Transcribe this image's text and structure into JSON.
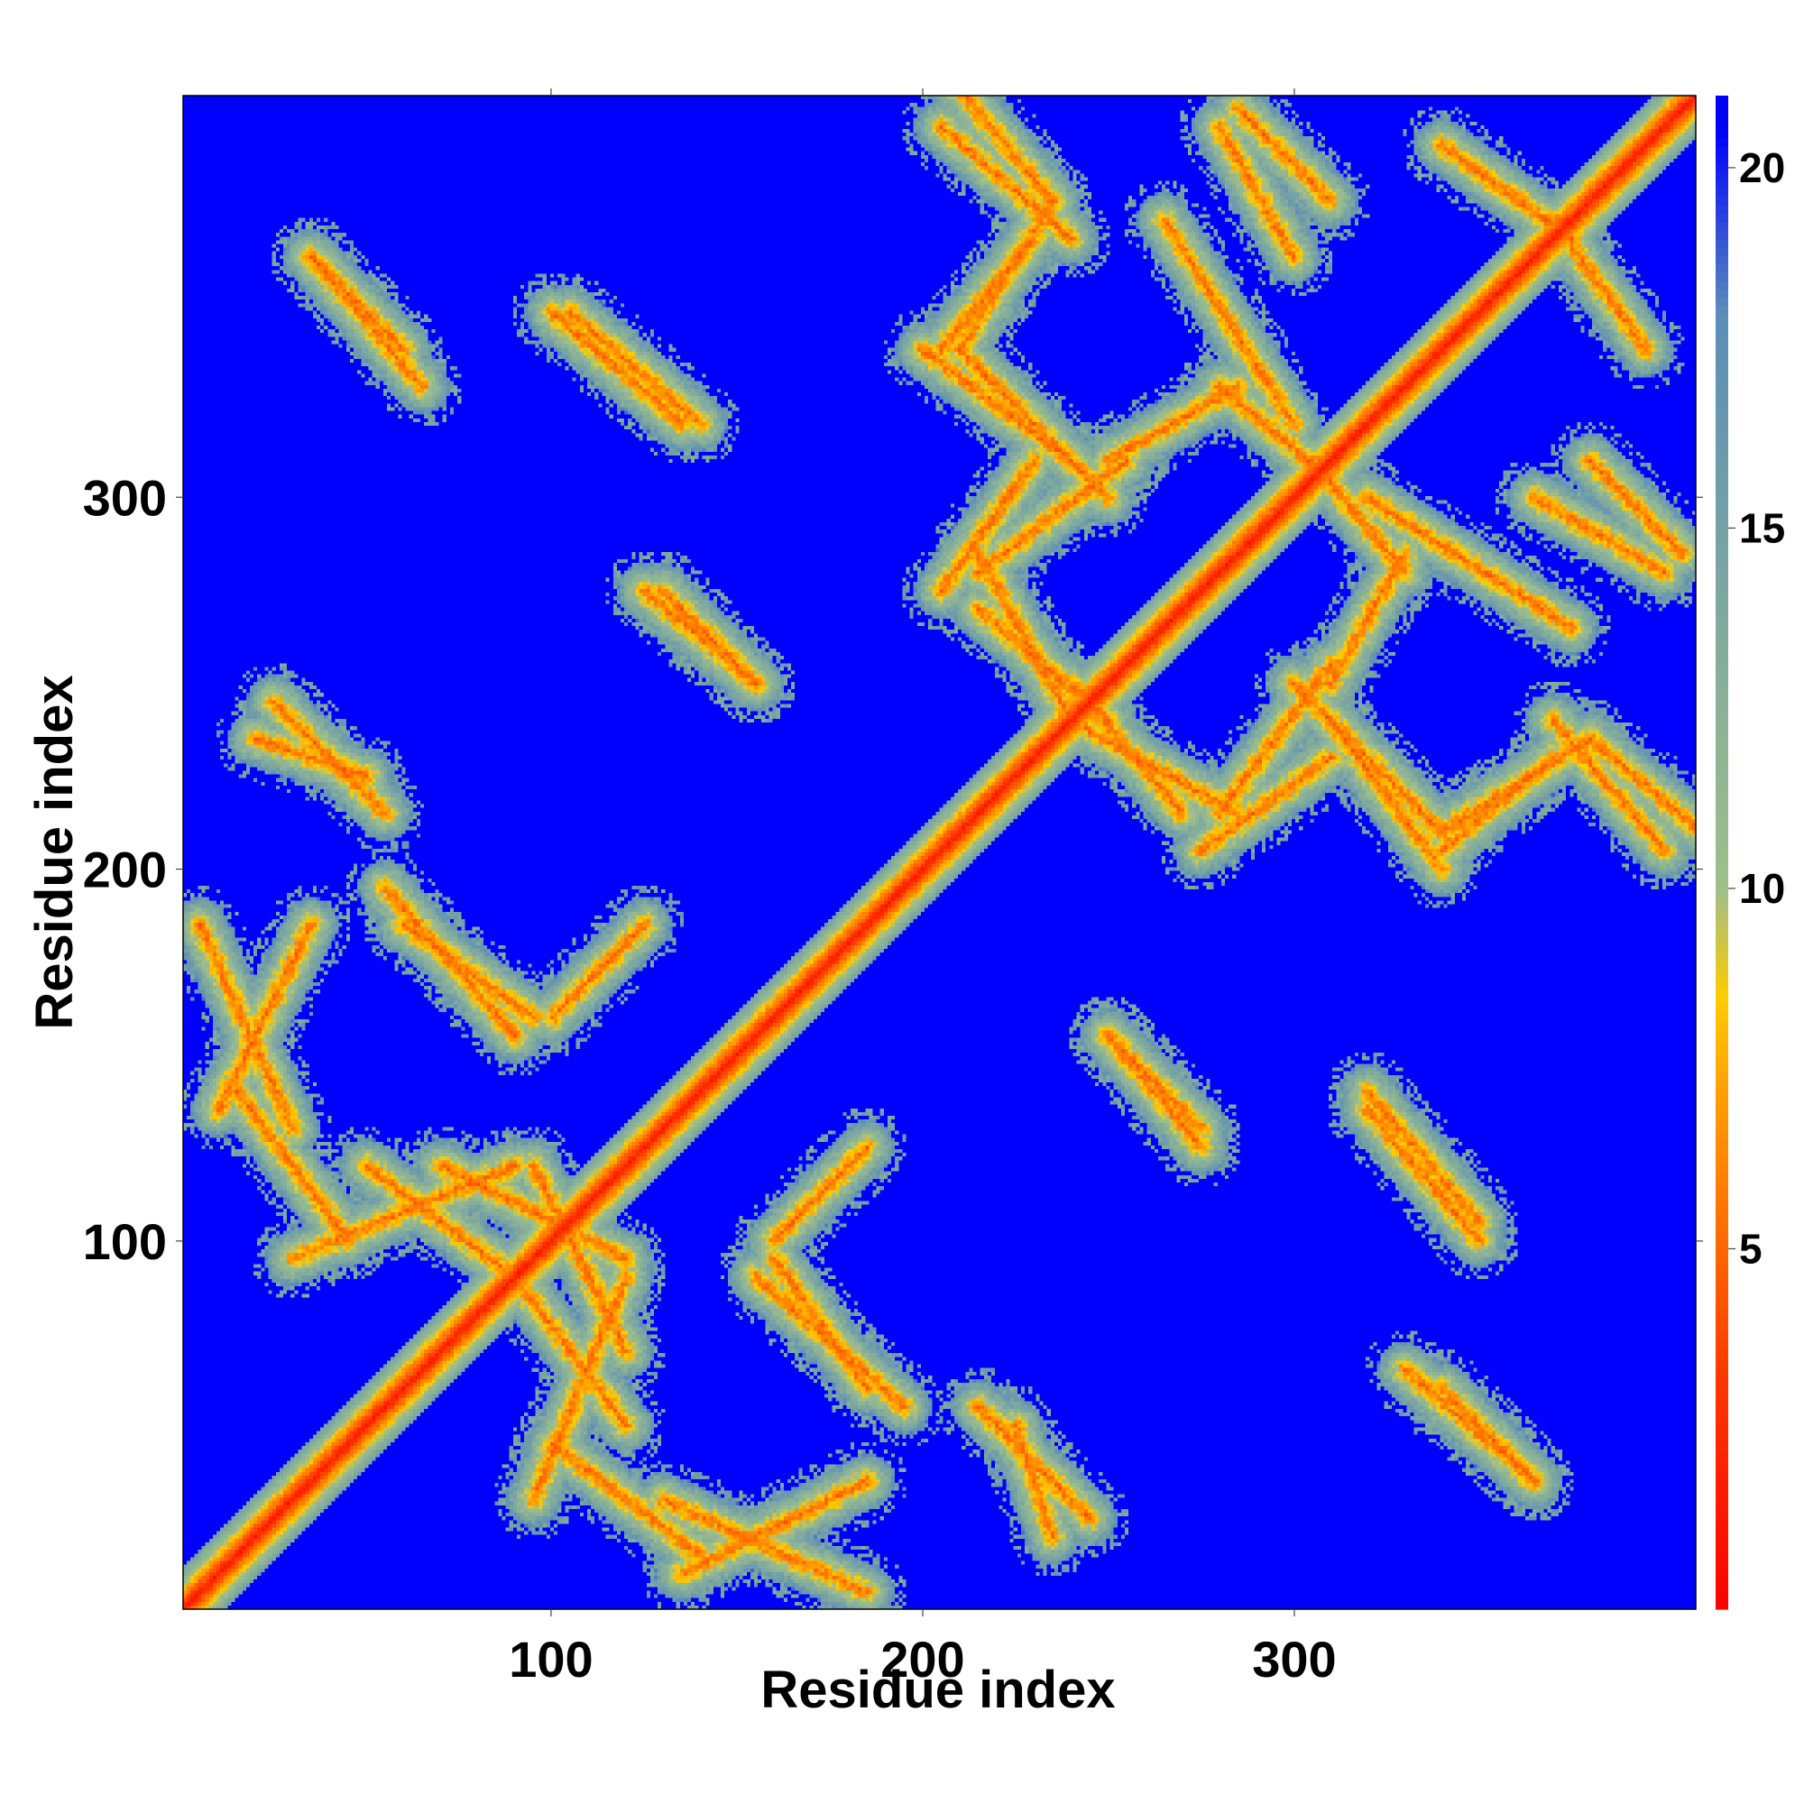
{
  "chart_data": {
    "type": "heatmap",
    "title": "",
    "xlabel": "Residue index",
    "ylabel": "Residue index",
    "xlim": [
      1,
      408
    ],
    "ylim": [
      1,
      408
    ],
    "xticks": [
      100,
      200,
      300
    ],
    "yticks": [
      100,
      200,
      300
    ],
    "n_residues": 408,
    "background_value": 21,
    "colorbar": {
      "range": [
        0,
        21
      ],
      "ticks": [
        5,
        10,
        15,
        20
      ],
      "colors": [
        "#ff0000",
        "#ff3300",
        "#ff6600",
        "#ff9900",
        "#ffcc00",
        "#9fbf8a",
        "#7ea8a0",
        "#5b8db8",
        "#0000ff"
      ],
      "stops": [
        0,
        3,
        5,
        7,
        8.5,
        10,
        14,
        18,
        20.5
      ]
    },
    "contact_segments": [
      {
        "x": [
          10,
          90
        ],
        "y": [
          10,
          90
        ],
        "label": "diagonal"
      },
      {
        "x": [
          5,
          30
        ],
        "y": [
          185,
          130
        ]
      },
      {
        "x": [
          30,
          90
        ],
        "y": [
          95,
          120
        ]
      },
      {
        "x": [
          70,
          120
        ],
        "y": [
          120,
          95
        ]
      },
      {
        "x": [
          90,
          120
        ],
        "y": [
          90,
          50
        ]
      },
      {
        "x": [
          100,
          140
        ],
        "y": [
          45,
          15
        ]
      },
      {
        "x": [
          135,
          185
        ],
        "y": [
          10,
          35
        ]
      },
      {
        "x": [
          155,
          195
        ],
        "y": [
          90,
          55
        ]
      },
      {
        "x": [
          60,
          95
        ],
        "y": [
          185,
          160
        ]
      },
      {
        "x": [
          100,
          125
        ],
        "y": [
          160,
          185
        ]
      },
      {
        "x": [
          35,
          60
        ],
        "y": [
          365,
          340
        ]
      },
      {
        "x": [
          100,
          135
        ],
        "y": [
          350,
          320
        ]
      },
      {
        "x": [
          125,
          155
        ],
        "y": [
          275,
          250
        ]
      },
      {
        "x": [
          20,
          50
        ],
        "y": [
          235,
          225
        ]
      },
      {
        "x": [
          205,
          240
        ],
        "y": [
          400,
          370
        ]
      },
      {
        "x": [
          205,
          230
        ],
        "y": [
          340,
          370
        ]
      },
      {
        "x": [
          210,
          250
        ],
        "y": [
          340,
          300
        ]
      },
      {
        "x": [
          215,
          255
        ],
        "y": [
          280,
          310
        ]
      },
      {
        "x": [
          215,
          250
        ],
        "y": [
          270,
          240
        ]
      },
      {
        "x": [
          250,
          285
        ],
        "y": [
          310,
          330
        ]
      },
      {
        "x": [
          280,
          310
        ],
        "y": [
          330,
          305
        ]
      },
      {
        "x": [
          285,
          310
        ],
        "y": [
          405,
          380
        ]
      },
      {
        "x": [
          320,
          375
        ],
        "y": [
          300,
          265
        ]
      },
      {
        "x": [
          310,
          340
        ],
        "y": [
          240,
          200
        ]
      },
      {
        "x": [
          340,
          380
        ],
        "y": [
          210,
          235
        ]
      },
      {
        "x": [
          380,
          410
        ],
        "y": [
          235,
          210
        ]
      },
      {
        "x": [
          240,
          285
        ],
        "y": [
          240,
          215
        ]
      },
      {
        "x": [
          275,
          310
        ],
        "y": [
          205,
          230
        ]
      },
      {
        "x": [
          365,
          400
        ],
        "y": [
          300,
          280
        ]
      },
      {
        "x": [
          340,
          375
        ],
        "y": [
          395,
          370
        ]
      },
      {
        "x": [
          250,
          275
        ],
        "y": [
          155,
          130
        ]
      },
      {
        "x": [
          320,
          350
        ],
        "y": [
          140,
          105
        ]
      },
      {
        "x": [
          330,
          365
        ],
        "y": [
          65,
          35
        ]
      },
      {
        "x": [
          215,
          245
        ],
        "y": [
          55,
          25
        ]
      }
    ]
  }
}
